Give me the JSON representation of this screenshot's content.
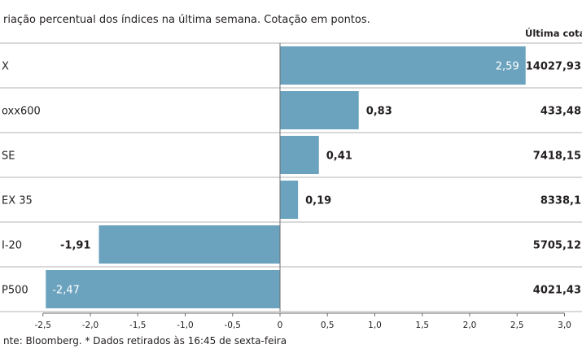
{
  "subtitle": "riação percentual dos índices na última semana. Cotação em pontos.",
  "price_header": "Última cotação",
  "source": "nte: Bloomberg.  * Dados retirados às 16:45 de sexta-feira",
  "colors": {
    "bar": "#6ba3bf",
    "rule": "#b3b3b3",
    "axis": "#6d6e71",
    "text": "#231f20"
  },
  "chart_data": {
    "type": "bar",
    "orientation": "horizontal",
    "categories": [
      "X",
      "oxx600",
      "SE",
      "EX 35",
      "I-20",
      "P500"
    ],
    "values": [
      2.59,
      0.83,
      0.41,
      0.19,
      -1.91,
      -2.47
    ],
    "value_labels": [
      "2,59",
      "0,83",
      "0,41",
      "0,19",
      "-1,91",
      "-2,47"
    ],
    "last_quote": [
      "14027,93",
      "433,48",
      "7418,15",
      "8338,1",
      "5705,12",
      "4021,43"
    ],
    "xlim": [
      -2.5,
      3.0
    ],
    "xticks": [
      -2.5,
      -2.0,
      -1.5,
      -1.0,
      -0.5,
      0,
      0.5,
      1.0,
      1.5,
      2.0,
      2.5,
      3.0
    ],
    "xtick_labels": [
      "-2,5",
      "-2,0",
      "-1,5",
      "-1,0",
      "-0,5",
      "0",
      "0,5",
      "1,0",
      "1,5",
      "2,0",
      "2,5",
      "3,0"
    ],
    "title": "",
    "xlabel": "",
    "ylabel": "",
    "grid": false,
    "legend": "none"
  }
}
